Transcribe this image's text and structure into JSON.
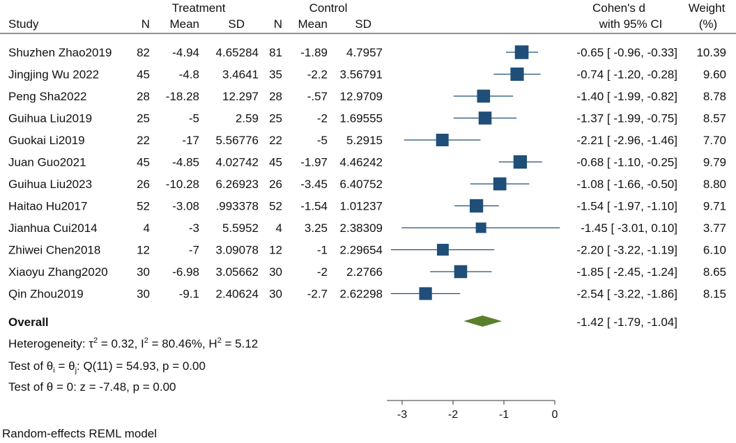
{
  "chart_data": {
    "type": "forest",
    "model_note": "Random-effects REML model",
    "group_headers": [
      "Treatment",
      "Control"
    ],
    "column_headers": {
      "study": "Study",
      "n_t": "N",
      "mean_t": "Mean",
      "sd_t": "SD",
      "n_c": "N",
      "mean_c": "Mean",
      "sd_c": "SD",
      "effect_line1": "Cohen's d",
      "effect_line2": "with 95% CI",
      "weight_line1": "Weight",
      "weight_line2": "(%)"
    },
    "studies": [
      {
        "name": "Shuzhen Zhao2019",
        "n_t": "82",
        "mean_t": "-4.94",
        "sd_t": "4.65284",
        "n_c": "81",
        "mean_c": "-1.89",
        "sd_c": "4.7957",
        "d": -0.65,
        "lo": -0.96,
        "hi": -0.33,
        "ci_text": "-0.65 [ -0.96, -0.33]",
        "weight": 10.39,
        "weight_text": "10.39"
      },
      {
        "name": "Jingjing Wu 2022",
        "n_t": "45",
        "mean_t": "-4.8",
        "sd_t": "3.4641",
        "n_c": "35",
        "mean_c": "-2.2",
        "sd_c": "3.56791",
        "d": -0.74,
        "lo": -1.2,
        "hi": -0.28,
        "ci_text": "-0.74 [ -1.20, -0.28]",
        "weight": 9.6,
        "weight_text": "9.60"
      },
      {
        "name": "Peng Sha2022",
        "n_t": "28",
        "mean_t": "-18.28",
        "sd_t": "12.297",
        "n_c": "28",
        "mean_c": "-.57",
        "sd_c": "12.9709",
        "d": -1.4,
        "lo": -1.99,
        "hi": -0.82,
        "ci_text": "-1.40 [ -1.99, -0.82]",
        "weight": 8.78,
        "weight_text": "8.78"
      },
      {
        "name": "Guihua Liu2019",
        "n_t": "25",
        "mean_t": "-5",
        "sd_t": "2.59",
        "n_c": "25",
        "mean_c": "-2",
        "sd_c": "1.69555",
        "d": -1.37,
        "lo": -1.99,
        "hi": -0.75,
        "ci_text": "-1.37 [ -1.99, -0.75]",
        "weight": 8.57,
        "weight_text": "8.57"
      },
      {
        "name": "Guokai Li2019",
        "n_t": "22",
        "mean_t": "-17",
        "sd_t": "5.56776",
        "n_c": "22",
        "mean_c": "-5",
        "sd_c": "5.2915",
        "d": -2.21,
        "lo": -2.96,
        "hi": -1.46,
        "ci_text": "-2.21 [ -2.96, -1.46]",
        "weight": 7.7,
        "weight_text": "7.70"
      },
      {
        "name": "Juan Guo2021",
        "n_t": "45",
        "mean_t": "-4.85",
        "sd_t": "4.02742",
        "n_c": "45",
        "mean_c": "-1.97",
        "sd_c": "4.46242",
        "d": -0.68,
        "lo": -1.1,
        "hi": -0.25,
        "ci_text": "-0.68 [ -1.10, -0.25]",
        "weight": 9.79,
        "weight_text": "9.79"
      },
      {
        "name": "Guihua Liu2023",
        "n_t": "26",
        "mean_t": "-10.28",
        "sd_t": "6.26923",
        "n_c": "26",
        "mean_c": "-3.45",
        "sd_c": "6.40752",
        "d": -1.08,
        "lo": -1.66,
        "hi": -0.5,
        "ci_text": "-1.08 [ -1.66, -0.50]",
        "weight": 8.8,
        "weight_text": "8.80"
      },
      {
        "name": "Haitao Hu2017",
        "n_t": "52",
        "mean_t": "-3.08",
        "sd_t": ".993378",
        "n_c": "52",
        "mean_c": "-1.54",
        "sd_c": "1.01237",
        "d": -1.54,
        "lo": -1.97,
        "hi": -1.1,
        "ci_text": "-1.54 [ -1.97, -1.10]",
        "weight": 9.71,
        "weight_text": "9.71"
      },
      {
        "name": "Jianhua Cui2014",
        "n_t": "4",
        "mean_t": "-3",
        "sd_t": "5.5952",
        "n_c": "4",
        "mean_c": "3.25",
        "sd_c": "2.38309",
        "d": -1.45,
        "lo": -3.01,
        "hi": 0.1,
        "ci_text": "-1.45 [ -3.01, 0.10]",
        "weight": 3.77,
        "weight_text": "3.77"
      },
      {
        "name": "Zhiwei Chen2018",
        "n_t": "12",
        "mean_t": "-7",
        "sd_t": "3.09078",
        "n_c": "12",
        "mean_c": "-1",
        "sd_c": "2.29654",
        "d": -2.2,
        "lo": -3.22,
        "hi": -1.19,
        "ci_text": "-2.20 [ -3.22, -1.19]",
        "weight": 6.1,
        "weight_text": "6.10"
      },
      {
        "name": "Xiaoyu Zhang2020",
        "n_t": "30",
        "mean_t": "-6.98",
        "sd_t": "3.05662",
        "n_c": "30",
        "mean_c": "-2",
        "sd_c": "2.2766",
        "d": -1.85,
        "lo": -2.45,
        "hi": -1.24,
        "ci_text": "-1.85 [ -2.45, -1.24]",
        "weight": 8.65,
        "weight_text": "8.65"
      },
      {
        "name": "Qin Zhou2019",
        "n_t": "30",
        "mean_t": "-9.1",
        "sd_t": "2.40624",
        "n_c": "30",
        "mean_c": "-2.7",
        "sd_c": "2.62298",
        "d": -2.54,
        "lo": -3.22,
        "hi": -1.86,
        "ci_text": "-2.54 [ -3.22, -1.86]",
        "weight": 8.15,
        "weight_text": "8.15"
      }
    ],
    "overall": {
      "label": "Overall",
      "d": -1.42,
      "lo": -1.79,
      "hi": -1.04,
      "ci_text": "-1.42 [ -1.79, -1.04]"
    },
    "stats": {
      "heterogeneity": {
        "prefix": "Heterogeneity: τ",
        "tau2": " = 0.32, I",
        "i2": " = 80.46%, H",
        "h2": " = 5.12",
        "sup": "2"
      },
      "test_equal": {
        "prefix": "Test of θ",
        "sub_i": "i",
        "mid": " = θ",
        "sub_j": "j",
        "suffix": ": Q(11) = 54.93, p = 0.00"
      },
      "test_zero": "Test of θ = 0: z = -7.48, p = 0.00"
    },
    "x_axis": {
      "ticks": [
        -3,
        -2,
        -1,
        0
      ],
      "tick_labels": [
        "-3",
        "-2",
        "-1",
        "0"
      ],
      "range": [
        -3.3,
        0.0
      ]
    },
    "colors": {
      "marker": "#1f4e79",
      "ci_line": "#1f4e79",
      "diamond": "#5a7f2b",
      "text": "#111111",
      "axis": "#333333"
    }
  }
}
